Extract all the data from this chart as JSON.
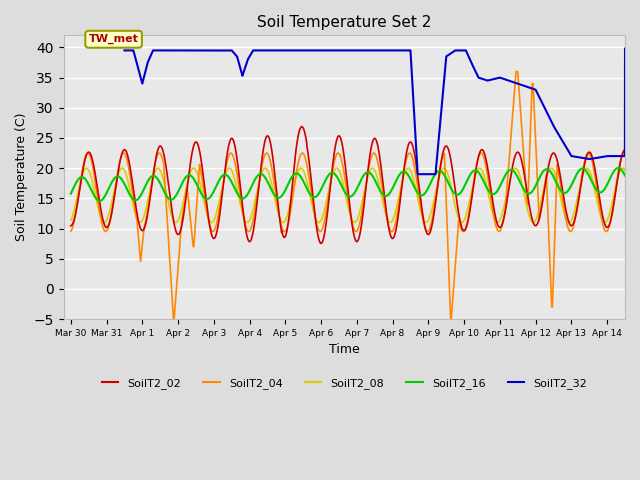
{
  "title": "Soil Temperature Set 2",
  "xlabel": "Time",
  "ylabel": "Soil Temperature (C)",
  "ylim": [
    -5,
    42
  ],
  "yticks": [
    -5,
    0,
    5,
    10,
    15,
    20,
    25,
    30,
    35,
    40
  ],
  "series_colors": {
    "SoilT2_02": "#cc0000",
    "SoilT2_04": "#ff8800",
    "SoilT2_08": "#ddcc00",
    "SoilT2_16": "#00cc00",
    "SoilT2_32": "#0000cc"
  },
  "tw_met_label": "TW_met",
  "tw_met_color": "#aa0000",
  "tw_met_bg": "#ffffcc",
  "tw_met_border": "#999900",
  "xtick_labels": [
    "Mar 30",
    "Mar 31",
    "Apr 1",
    "Apr 2",
    "Apr 3",
    "Apr 4",
    "Apr 5",
    "Apr 6",
    "Apr 7",
    "Apr 8",
    "Apr 9",
    "Apr 10",
    "Apr 11",
    "Apr 12",
    "Apr 13",
    "Apr 14"
  ],
  "fig_facecolor": "#dddddd",
  "ax_facecolor": "#e8e8e8"
}
